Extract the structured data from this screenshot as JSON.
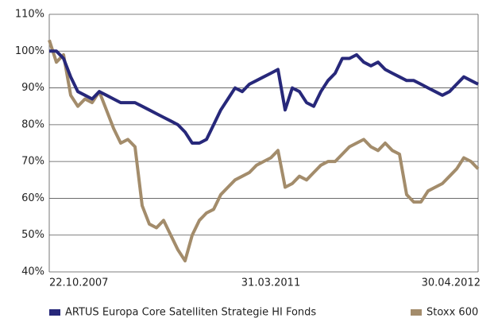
{
  "chart_data": {
    "type": "line",
    "categories": [
      "22.10.2007",
      null,
      null,
      null,
      null,
      null,
      null,
      null,
      null,
      null,
      null,
      null,
      null,
      null,
      null,
      null,
      null,
      null,
      null,
      null,
      null,
      null,
      null,
      null,
      null,
      null,
      null,
      null,
      null,
      null,
      null,
      "31.03.2011",
      null,
      null,
      null,
      null,
      null,
      null,
      null,
      null,
      null,
      null,
      null,
      null,
      null,
      null,
      null,
      null,
      null,
      null,
      null,
      null,
      null,
      null,
      null,
      null,
      null,
      null,
      null,
      null,
      "30.04.2012"
    ],
    "series": [
      {
        "name": "ARTUS Europa Core Satelliten Strategie HI Fonds",
        "color": "#27287a",
        "values": [
          100,
          100,
          98,
          93,
          89,
          88,
          87,
          89,
          88,
          87,
          86,
          86,
          86,
          85,
          84,
          83,
          82,
          81,
          80,
          78,
          75,
          75,
          76,
          80,
          84,
          87,
          90,
          89,
          91,
          92,
          93,
          94,
          95,
          84,
          90,
          89,
          86,
          85,
          89,
          92,
          94,
          98,
          98,
          99,
          97,
          96,
          97,
          95,
          94,
          93,
          92,
          92,
          91,
          90,
          89,
          88,
          89,
          91,
          93,
          92,
          91
        ]
      },
      {
        "name": "Stoxx 600",
        "color": "#a38c6b",
        "values": [
          103,
          97,
          99,
          88,
          85,
          87,
          86,
          89,
          84,
          79,
          75,
          76,
          74,
          58,
          53,
          52,
          54,
          50,
          46,
          43,
          50,
          54,
          56,
          57,
          61,
          63,
          65,
          66,
          67,
          69,
          70,
          71,
          73,
          63,
          64,
          66,
          65,
          67,
          69,
          70,
          70,
          72,
          74,
          75,
          76,
          74,
          73,
          75,
          73,
          72,
          61,
          59,
          59,
          62,
          63,
          64,
          66,
          68,
          71,
          70,
          68
        ]
      }
    ],
    "ylim": [
      40,
      110
    ],
    "yticks": [
      {
        "value": 40,
        "label": "40%"
      },
      {
        "value": 50,
        "label": "50%"
      },
      {
        "value": 60,
        "label": "60%"
      },
      {
        "value": 70,
        "label": "70%"
      },
      {
        "value": 80,
        "label": "80%"
      },
      {
        "value": 90,
        "label": "90%"
      },
      {
        "value": 100,
        "label": "100%"
      },
      {
        "value": 110,
        "label": "110%"
      }
    ],
    "grid": true
  }
}
